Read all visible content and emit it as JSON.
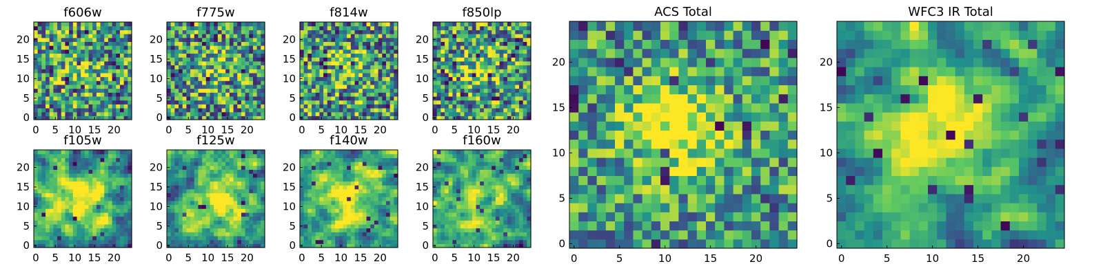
{
  "chart_data": {
    "type": "heatmap",
    "colormap": [
      "#440154",
      "#3b528b",
      "#21918c",
      "#5ec962",
      "#fde725"
    ],
    "panels": [
      {
        "id": "f606w",
        "title": "f606w",
        "grid_size": 25,
        "seed": 11,
        "blob": {
          "cx": 12,
          "cy": 12,
          "sigma": 4,
          "amp": 0.2
        },
        "noise": 0.45,
        "smooth": 0,
        "dark_frac": 0.08,
        "xticks": [
          0,
          5,
          10,
          15,
          20
        ],
        "yticks": [
          0,
          5,
          10,
          15,
          20
        ]
      },
      {
        "id": "f775w",
        "title": "f775w",
        "grid_size": 25,
        "seed": 23,
        "blob": {
          "cx": 12,
          "cy": 12,
          "sigma": 4,
          "amp": 0.25
        },
        "noise": 0.45,
        "smooth": 0,
        "dark_frac": 0.08,
        "xticks": [
          0,
          5,
          10,
          15,
          20
        ],
        "yticks": [
          0,
          5,
          10,
          15,
          20
        ]
      },
      {
        "id": "f814w",
        "title": "f814w",
        "grid_size": 25,
        "seed": 37,
        "blob": {
          "cx": 12,
          "cy": 13,
          "sigma": 3,
          "amp": 0.35
        },
        "noise": 0.45,
        "smooth": 0,
        "dark_frac": 0.09,
        "xticks": [
          0,
          5,
          10,
          15,
          20
        ],
        "yticks": [
          0,
          5,
          10,
          15,
          20
        ]
      },
      {
        "id": "f850lp",
        "title": "f850lp",
        "grid_size": 25,
        "seed": 41,
        "blob": {
          "cx": 12,
          "cy": 12,
          "sigma": 4,
          "amp": 0.3
        },
        "noise": 0.45,
        "smooth": 0,
        "dark_frac": 0.08,
        "xticks": [
          0,
          5,
          10,
          15,
          20
        ],
        "yticks": [
          0,
          5,
          10,
          15,
          20
        ]
      },
      {
        "id": "f105w",
        "title": "f105w",
        "grid_size": 25,
        "seed": 53,
        "blob": {
          "cx": 12,
          "cy": 12,
          "sigma": 5,
          "amp": 0.45
        },
        "noise": 0.35,
        "smooth": 1,
        "dark_frac": 0.03,
        "xticks": [
          0,
          5,
          10,
          15,
          20
        ],
        "yticks": [
          0,
          5,
          10,
          15,
          20
        ]
      },
      {
        "id": "f125w",
        "title": "f125w",
        "grid_size": 25,
        "seed": 67,
        "blob": {
          "cx": 13,
          "cy": 12,
          "sigma": 5,
          "amp": 0.45
        },
        "noise": 0.35,
        "smooth": 1,
        "dark_frac": 0.02,
        "xticks": [
          0,
          5,
          10,
          15,
          20
        ],
        "yticks": [
          0,
          5,
          10,
          15,
          20
        ]
      },
      {
        "id": "f140w",
        "title": "f140w",
        "grid_size": 25,
        "seed": 71,
        "blob": {
          "cx": 13,
          "cy": 12,
          "sigma": 5,
          "amp": 0.45
        },
        "noise": 0.35,
        "smooth": 1,
        "dark_frac": 0.03,
        "xticks": [
          0,
          5,
          10,
          15,
          20
        ],
        "yticks": [
          0,
          5,
          10,
          15,
          20
        ]
      },
      {
        "id": "f160w",
        "title": "f160w",
        "grid_size": 25,
        "seed": 83,
        "blob": {
          "cx": 12,
          "cy": 11,
          "sigma": 5,
          "amp": 0.4
        },
        "noise": 0.35,
        "smooth": 1,
        "dark_frac": 0.04,
        "xticks": [
          0,
          5,
          10,
          15,
          20
        ],
        "yticks": [
          0,
          5,
          10,
          15,
          20
        ]
      },
      {
        "id": "acs-total",
        "title": "ACS Total",
        "grid_size": 25,
        "seed": 97,
        "blob": {
          "cx": 11,
          "cy": 13,
          "sigma": 3.5,
          "amp": 0.55
        },
        "noise": 0.35,
        "smooth": 0,
        "dark_frac": 0.05,
        "xticks": [
          0,
          5,
          10,
          15,
          20
        ],
        "yticks": [
          0,
          5,
          10,
          15,
          20
        ]
      },
      {
        "id": "wfc3-ir-total",
        "title": "WFC3 IR Total",
        "grid_size": 25,
        "seed": 101,
        "blob": {
          "cx": 12,
          "cy": 13,
          "sigma": 4,
          "amp": 0.6
        },
        "noise": 0.3,
        "smooth": 1,
        "dark_frac": 0.04,
        "xticks": [
          0,
          5,
          10,
          15,
          20
        ],
        "yticks": [
          0,
          5,
          10,
          15,
          20
        ]
      }
    ]
  }
}
